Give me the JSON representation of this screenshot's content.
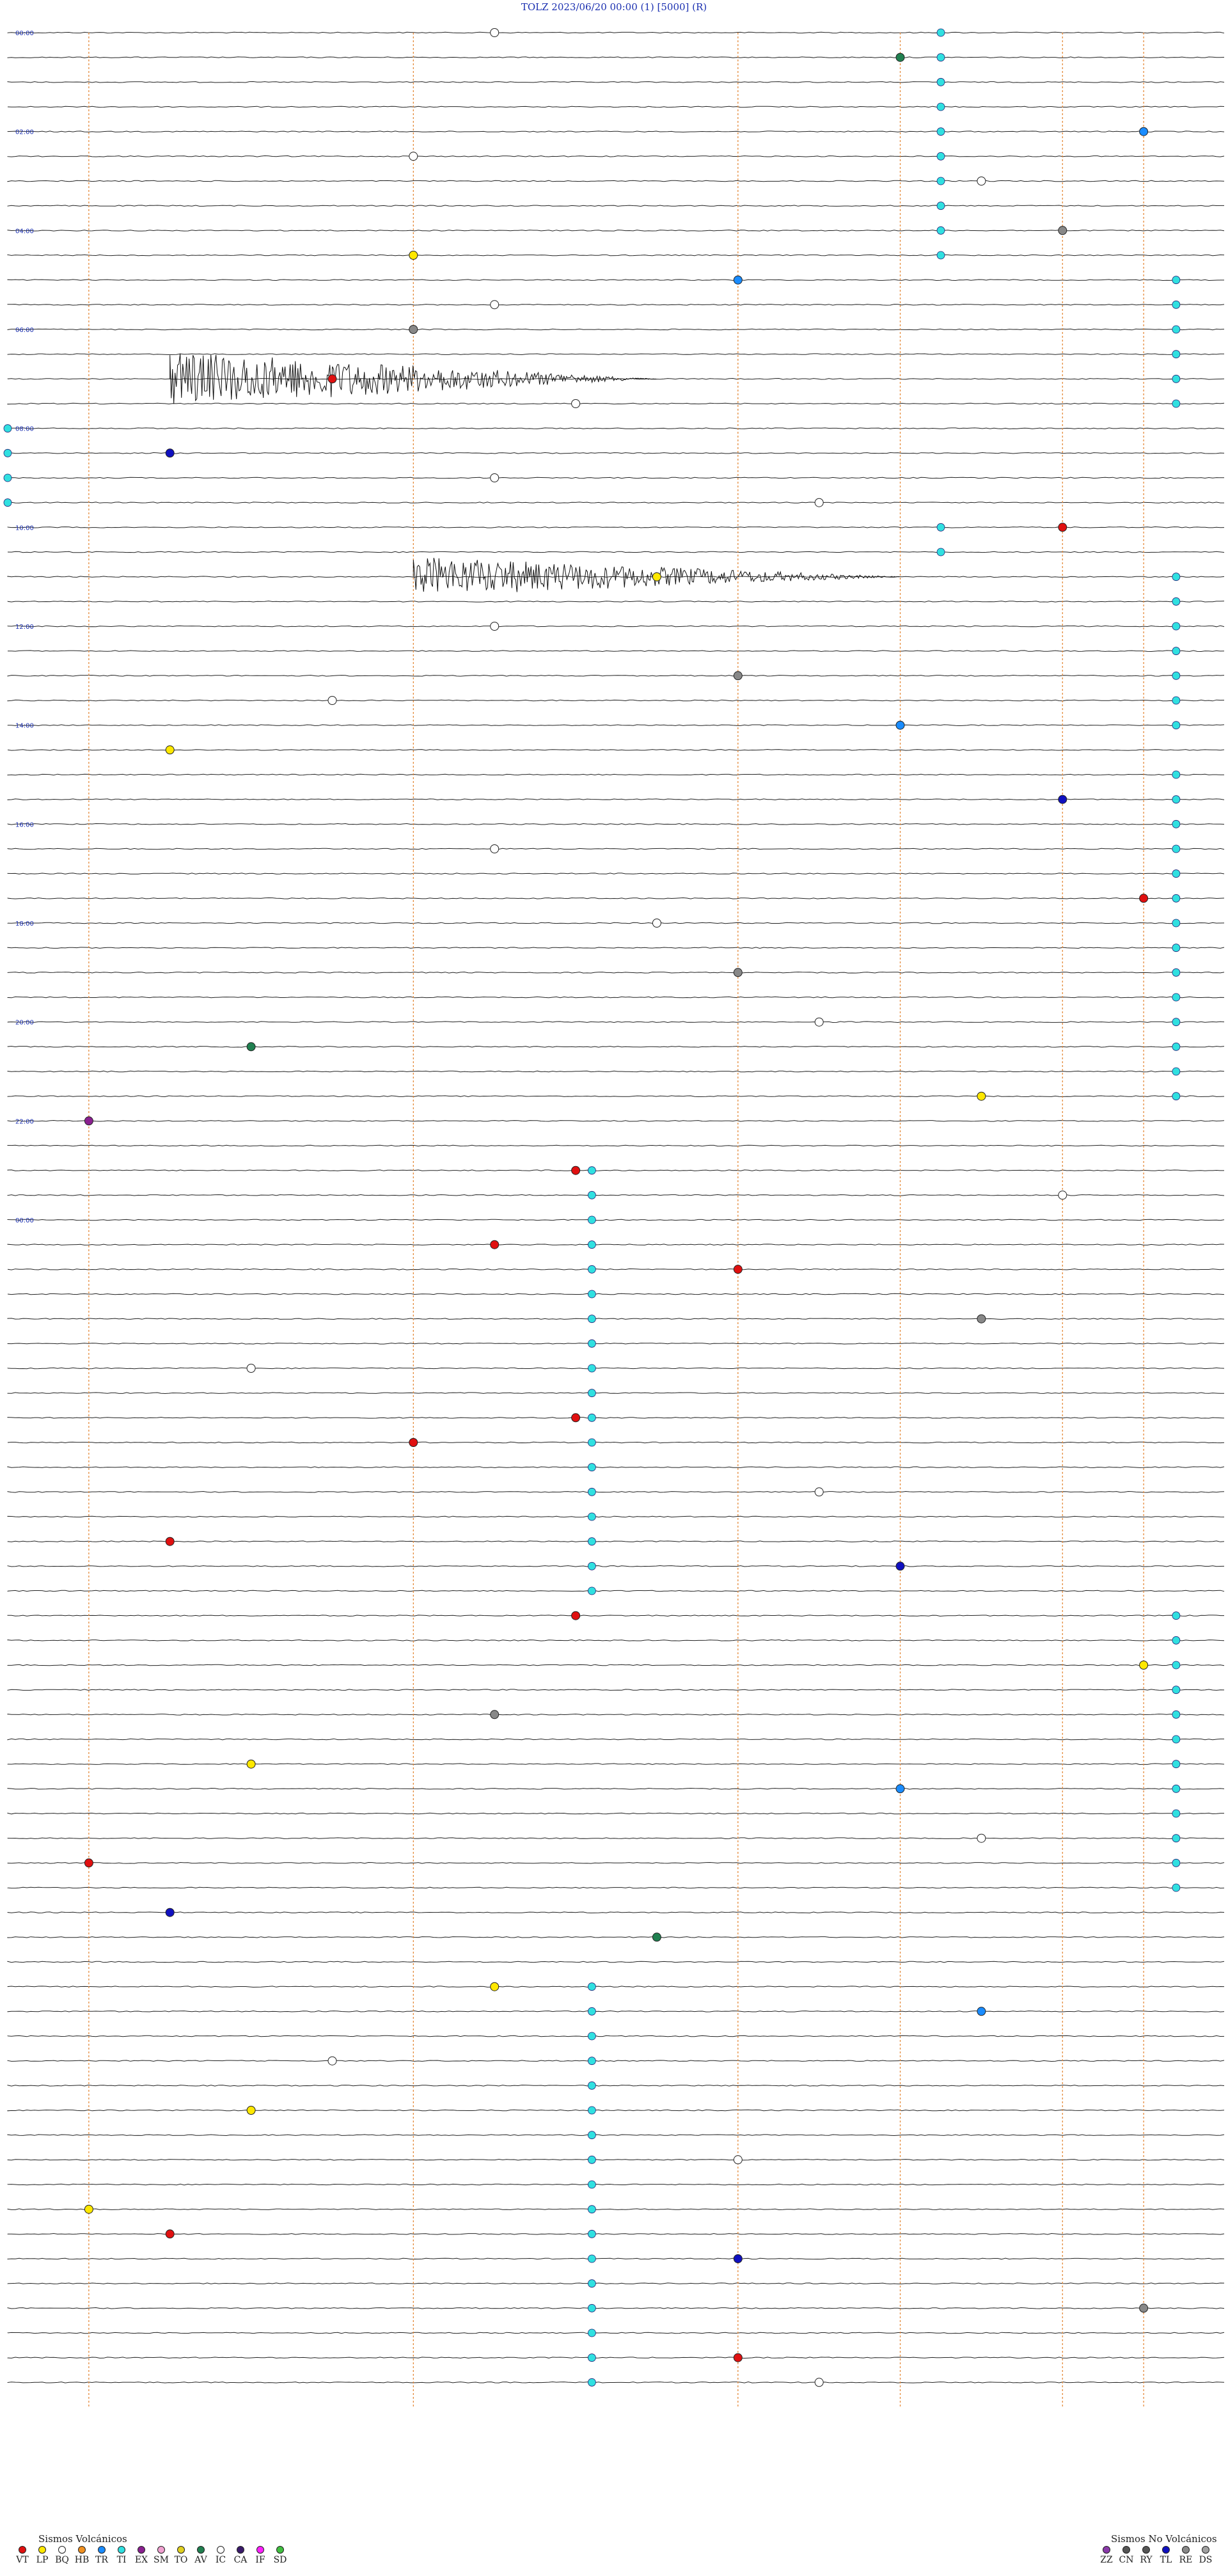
{
  "header": {
    "title": "TOLZ    2023/06/20 00:00     (1)     [5000]   (R)"
  },
  "chart_data": {
    "type": "scatter",
    "hour_labels": [
      "00:00",
      "02:00",
      "04:00",
      "06:00",
      "08:00",
      "10:00",
      "12:00",
      "14:00",
      "16:00",
      "18:00",
      "20:00",
      "22:00",
      "00:00"
    ],
    "trace_minutes": 15,
    "hours": 24,
    "events": [
      {
        "h": 0.1,
        "m": 6.0,
        "type": "IC",
        "dur": 0.6
      },
      {
        "h": 0.2,
        "m": 11.0,
        "type": "AV",
        "dur": 2.5
      },
      {
        "h": 0.9,
        "m": 14.0,
        "type": "TR",
        "dur": 1.0
      },
      {
        "h": 1.3,
        "m": 5.0,
        "type": "IC",
        "dur": 1.0
      },
      {
        "h": 1.5,
        "m": 12.0,
        "type": "IC",
        "dur": 1.0
      },
      {
        "h": 1.9,
        "m": 13.0,
        "type": "RE",
        "dur": 0.5
      },
      {
        "h": 2.3,
        "m": 5.0,
        "type": "LP",
        "dur": 0.5
      },
      {
        "h": 2.6,
        "m": 9.0,
        "type": "TR",
        "dur": 0.8
      },
      {
        "h": 2.8,
        "m": 6.0,
        "type": "IC",
        "dur": 1.0
      },
      {
        "h": 3.0,
        "m": 5.0,
        "type": "RE",
        "dur": 0.3
      },
      {
        "h": 3.4,
        "m": 4.0,
        "type": "VT",
        "dur": 0.5
      },
      {
        "h": 3.7,
        "m": 7.0,
        "type": "IC",
        "dur": 1.0
      },
      {
        "h": 4.2,
        "m": 2.0,
        "type": "TL",
        "dur": 0.5
      },
      {
        "h": 4.5,
        "m": 6.0,
        "type": "IC",
        "dur": 1.0
      },
      {
        "h": 4.8,
        "m": 10.0,
        "type": "IC",
        "dur": 1.0
      },
      {
        "h": 5.1,
        "m": 13.0,
        "type": "VT",
        "dur": 0.5
      },
      {
        "h": 5.4,
        "m": 8.0,
        "type": "LP",
        "dur": 0.5
      },
      {
        "h": 5.9,
        "m": 6.0,
        "type": "IC",
        "dur": 1.0
      },
      {
        "h": 6.4,
        "m": 9.0,
        "type": "RE",
        "dur": 0.5
      },
      {
        "h": 6.8,
        "m": 4.0,
        "type": "IC",
        "dur": 1.0
      },
      {
        "h": 7.0,
        "m": 11.0,
        "type": "TR",
        "dur": 1.0
      },
      {
        "h": 7.3,
        "m": 2.0,
        "type": "LP",
        "dur": 0.5
      },
      {
        "h": 7.7,
        "m": 13.0,
        "type": "TL",
        "dur": 0.5
      },
      {
        "h": 8.2,
        "m": 6.0,
        "type": "IC",
        "dur": 1.0
      },
      {
        "h": 8.7,
        "m": 14.0,
        "type": "VT",
        "dur": 0.5
      },
      {
        "h": 9.0,
        "m": 8.0,
        "type": "IC",
        "dur": 1.0
      },
      {
        "h": 9.5,
        "m": 9.0,
        "type": "RE",
        "dur": 0.5
      },
      {
        "h": 9.9,
        "m": 10.0,
        "type": "IC",
        "dur": 1.0
      },
      {
        "h": 10.3,
        "m": 3.0,
        "type": "AV",
        "dur": 0.5
      },
      {
        "h": 10.7,
        "m": 12.0,
        "type": "LP",
        "dur": 0.5
      },
      {
        "h": 11.1,
        "m": 1.0,
        "type": "EX",
        "dur": 0.5
      },
      {
        "h": 11.4,
        "m": 7.0,
        "type": "VT",
        "dur": 0.5
      },
      {
        "h": 11.8,
        "m": 13.0,
        "type": "IC",
        "dur": 1.0
      },
      {
        "h": 12.3,
        "m": 6.0,
        "type": "VT",
        "dur": 0.5
      },
      {
        "h": 12.6,
        "m": 9.0,
        "type": "VT",
        "dur": 0.5
      },
      {
        "h": 13.0,
        "m": 12.0,
        "type": "RE",
        "dur": 0.5
      },
      {
        "h": 13.5,
        "m": 3.0,
        "type": "IC",
        "dur": 1.0
      },
      {
        "h": 13.9,
        "m": 7.0,
        "type": "VT",
        "dur": 0.5
      },
      {
        "h": 14.3,
        "m": 5.0,
        "type": "VT",
        "dur": 0.5
      },
      {
        "h": 14.7,
        "m": 10.0,
        "type": "IC",
        "dur": 1.0
      },
      {
        "h": 15.2,
        "m": 2.0,
        "type": "VT",
        "dur": 0.5
      },
      {
        "h": 15.6,
        "m": 11.0,
        "type": "TL",
        "dur": 0.5
      },
      {
        "h": 16.1,
        "m": 7.0,
        "type": "VT",
        "dur": 0.5
      },
      {
        "h": 16.5,
        "m": 14.0,
        "type": "LP",
        "dur": 0.5
      },
      {
        "h": 16.9,
        "m": 6.0,
        "type": "RE",
        "dur": 0.5
      },
      {
        "h": 17.4,
        "m": 3.0,
        "type": "LP",
        "dur": 0.5
      },
      {
        "h": 17.8,
        "m": 11.0,
        "type": "TR",
        "dur": 1.0
      },
      {
        "h": 18.2,
        "m": 12.0,
        "type": "IC",
        "dur": 1.0
      },
      {
        "h": 18.6,
        "m": 1.0,
        "type": "VT",
        "dur": 0.5
      },
      {
        "h": 19.0,
        "m": 2.0,
        "type": "TL",
        "dur": 0.5
      },
      {
        "h": 19.3,
        "m": 8.0,
        "type": "AV",
        "dur": 0.5
      },
      {
        "h": 19.7,
        "m": 6.0,
        "type": "LP",
        "dur": 0.5
      },
      {
        "h": 20.1,
        "m": 12.0,
        "type": "TR",
        "dur": 1.0
      },
      {
        "h": 20.6,
        "m": 4.0,
        "type": "IC",
        "dur": 1.0
      },
      {
        "h": 21.0,
        "m": 3.0,
        "type": "LP",
        "dur": 0.5
      },
      {
        "h": 21.5,
        "m": 9.0,
        "type": "IC",
        "dur": 1.0
      },
      {
        "h": 22.0,
        "m": 1.0,
        "type": "LP",
        "dur": 0.5
      },
      {
        "h": 22.2,
        "m": 2.0,
        "type": "VT",
        "dur": 0.5
      },
      {
        "h": 22.6,
        "m": 9.0,
        "type": "TL",
        "dur": 0.5
      },
      {
        "h": 23.0,
        "m": 14.0,
        "type": "RE",
        "dur": 0.5
      },
      {
        "h": 23.4,
        "m": 9.0,
        "type": "VT",
        "dur": 0.5
      },
      {
        "h": 23.8,
        "m": 10.0,
        "type": "IC",
        "dur": 1.0
      }
    ],
    "tremor_bands": [
      {
        "start_h": 0.0,
        "end_h": 2.4,
        "m": 11.5
      },
      {
        "start_h": 2.4,
        "end_h": 4.0,
        "m": 14.4
      },
      {
        "start_h": 4.0,
        "end_h": 5.0,
        "m": 0.0
      },
      {
        "start_h": 5.0,
        "end_h": 5.4,
        "m": 11.5
      },
      {
        "start_h": 5.4,
        "end_h": 7.2,
        "m": 14.4
      },
      {
        "start_h": 7.4,
        "end_h": 10.9,
        "m": 14.4
      },
      {
        "start_h": 11.6,
        "end_h": 16.1,
        "m": 7.2
      },
      {
        "start_h": 16.1,
        "end_h": 19.1,
        "m": 14.4
      },
      {
        "start_h": 19.8,
        "end_h": 24.0,
        "m": 7.2
      }
    ],
    "large_events": [
      {
        "h": 3.5,
        "m": 2.0,
        "dur": 6.0,
        "amp": 2.2
      },
      {
        "h": 5.6,
        "m": 5.0,
        "dur": 6.0,
        "amp": 1.6
      }
    ],
    "legend": {
      "volcanic_title": "Sismos Volcánicos",
      "volcanic": [
        {
          "code": "VT",
          "color": "#e01010"
        },
        {
          "code": "LP",
          "color": "#ffe800"
        },
        {
          "code": "BQ",
          "color": "#ffffff"
        },
        {
          "code": "HB",
          "color": "#f09020"
        },
        {
          "code": "TR",
          "color": "#1a8cff"
        },
        {
          "code": "TI",
          "color": "#30e0e0"
        },
        {
          "code": "EX",
          "color": "#8a2090"
        },
        {
          "code": "SM",
          "color": "#f0a0d0"
        },
        {
          "code": "TO",
          "color": "#e0d020"
        },
        {
          "code": "AV",
          "color": "#208050"
        },
        {
          "code": "IC",
          "color": "#ffffff"
        },
        {
          "code": "CA",
          "color": "#3a1a6a"
        },
        {
          "code": "IF",
          "color": "#ff20ff"
        },
        {
          "code": "SD",
          "color": "#40c040"
        }
      ],
      "nonvolcanic_title": "Sismos No Volcánicos",
      "nonvolcanic": [
        {
          "code": "ZZ",
          "color": "#8a3aaa"
        },
        {
          "code": "CN",
          "color": "#555555"
        },
        {
          "code": "RY",
          "color": "#555555"
        },
        {
          "code": "TL",
          "color": "#1010c0"
        },
        {
          "code": "RE",
          "color": "#888888"
        },
        {
          "code": "DS",
          "color": "#a0a0a0"
        }
      ]
    }
  }
}
